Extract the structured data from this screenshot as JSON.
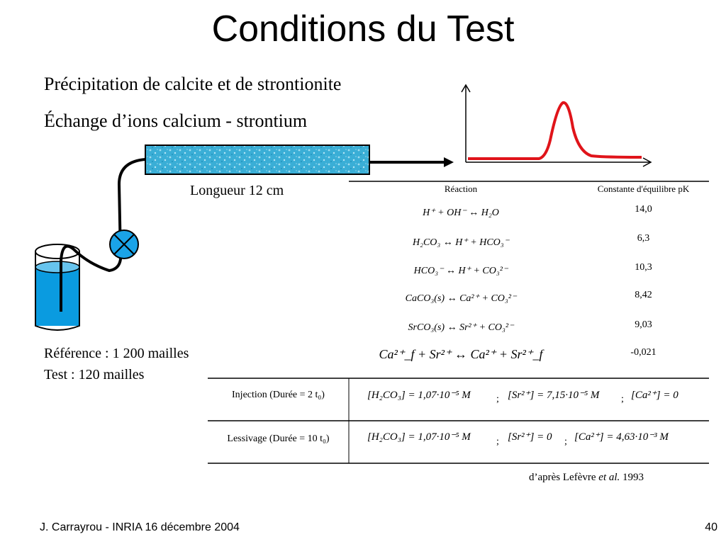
{
  "title": "Conditions du Test",
  "bullets": [
    "Précipitation de calcite et de strontionite",
    "Échange d’ions calcium - strontium"
  ],
  "column_label": "Longueur 12 cm",
  "reference": "Référence : 1 200 mailles",
  "test": "Test : 120 mailles",
  "reaction_table": {
    "headers": [
      "Réaction",
      "Constante d'équilibre pK"
    ],
    "rows": [
      {
        "reaction": "H⁺ + OH⁻ ↔ H₂O",
        "pk": "14,0"
      },
      {
        "reaction": "H₂CO₃ ↔ H⁺ + HCO₃⁻",
        "pk": "6,3"
      },
      {
        "reaction": "HCO₃⁻ ↔ H⁺ + CO₃²⁻",
        "pk": "10,3"
      },
      {
        "reaction": "CaCO₃(s) ↔ Ca²⁺ + CO₃²⁻",
        "pk": "8,42"
      },
      {
        "reaction": "SrCO₃(s) ↔ Sr²⁺ + CO₃²⁻",
        "pk": "9,03"
      },
      {
        "reaction": "Ca²⁺_f + Sr²⁺ ↔ Ca²⁺ + Sr²⁺_f",
        "pk": "-0,021"
      }
    ]
  },
  "conditions": [
    {
      "label": "Injection (Durée = 2 t₀)",
      "c1": "[H₂CO₃] = 1,07·10⁻⁵ M",
      "c2": "[Sr²⁺] = 7,15·10⁻⁵ M",
      "c3": "[Ca²⁺] = 0",
      "sep": ";"
    },
    {
      "label": "Lessivage (Durée = 10 t₀)",
      "c1": "[H₂CO₃] = 1,07·10⁻⁵ M",
      "c2": "[Sr²⁺] = 0",
      "c3": "[Ca²⁺] = 4,63·10⁻³ M",
      "sep": ";"
    }
  ],
  "citation": {
    "prefix": "d’après Lefèvre ",
    "italic": "et al.",
    "suffix": " 1993"
  },
  "footer": {
    "left": "J. Carrayrou  -  INRIA 16 décembre 2004",
    "page": "40"
  },
  "colors": {
    "beaker_water": "#0a9be0",
    "valve": "#1aa3e8",
    "column": "#3ab0d8",
    "curve": "#e0141a"
  }
}
